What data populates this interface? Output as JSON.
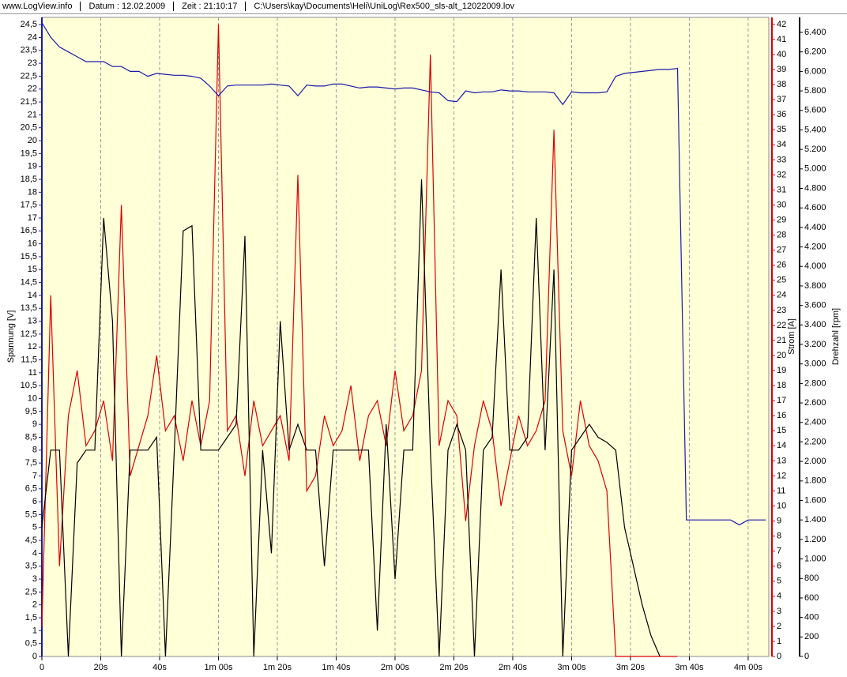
{
  "header": [
    "www.LogView.info",
    "Datum : 12.02.2009",
    "Zeit : 21:10:17",
    "C:\\Users\\kay\\Documents\\Heli\\UniLog\\Rex500_sls-alt_12022009.lov"
  ],
  "chart_data": {
    "type": "line",
    "ylabel": "Spannung [V]",
    "y2label": "Strom [A]",
    "y3label": "Drehzahl [rpm]",
    "x": [
      0,
      3,
      6,
      9,
      12,
      15,
      18,
      21,
      24,
      27,
      30,
      33,
      36,
      39,
      42,
      45,
      48,
      51,
      54,
      57,
      60,
      63,
      66,
      69,
      72,
      75,
      78,
      81,
      84,
      87,
      90,
      93,
      96,
      99,
      102,
      105,
      108,
      111,
      114,
      117,
      120,
      123,
      126,
      129,
      132,
      135,
      138,
      141,
      144,
      147,
      150,
      153,
      156,
      159,
      162,
      165,
      168,
      171,
      174,
      177,
      180,
      183,
      186,
      189,
      192,
      195,
      198,
      201,
      204,
      207,
      210,
      213,
      216,
      219,
      222,
      225,
      228,
      231,
      234,
      237,
      240,
      243,
      246
    ],
    "xlim": [
      0,
      247
    ],
    "xticks": [
      0,
      {
        "value": 20,
        "label": "20s"
      },
      {
        "value": 40,
        "label": "40s"
      },
      {
        "value": 60,
        "label": "1m 00s"
      },
      {
        "value": 80,
        "label": "1m 20s"
      },
      {
        "value": 100,
        "label": "1m 40s"
      },
      {
        "value": 120,
        "label": "2m 00s"
      },
      {
        "value": 140,
        "label": "2m 20s"
      },
      {
        "value": 160,
        "label": "2m 40s"
      },
      {
        "value": 180,
        "label": "3m 00s"
      },
      {
        "value": 200,
        "label": "3m 20s"
      },
      {
        "value": 220,
        "label": "3m 40s"
      },
      {
        "value": 240,
        "label": "4m 00s"
      }
    ],
    "grid": true,
    "ylim": [
      0,
      24.78
    ],
    "yticks": [
      0,
      {
        "value": 0.5,
        "label": "0,5"
      },
      1,
      {
        "value": 1.5,
        "label": "1,5"
      },
      2,
      {
        "value": 2.5,
        "label": "2,5"
      },
      3,
      {
        "value": 3.5,
        "label": "3,5"
      },
      4,
      {
        "value": 4.5,
        "label": "4,5"
      },
      5,
      {
        "value": 5.5,
        "label": "5,5"
      },
      6,
      {
        "value": 6.5,
        "label": "6,5"
      },
      7,
      {
        "value": 7.5,
        "label": "7,5"
      },
      8,
      {
        "value": 8.5,
        "label": "8,5"
      },
      9,
      {
        "value": 9.5,
        "label": "9,5"
      },
      10,
      {
        "value": 10.5,
        "label": "10,5"
      },
      11,
      {
        "value": 11.5,
        "label": "11,5"
      },
      12,
      {
        "value": 12.5,
        "label": "12,5"
      },
      13,
      {
        "value": 13.5,
        "label": "13,5"
      },
      14,
      {
        "value": 14.5,
        "label": "14,5"
      },
      15,
      {
        "value": 15.5,
        "label": "15,5"
      },
      16,
      {
        "value": 16.5,
        "label": "16,5"
      },
      17,
      {
        "value": 17.5,
        "label": "17,5"
      },
      18,
      {
        "value": 18.5,
        "label": "18,5"
      },
      19,
      {
        "value": 19.5,
        "label": "19,5"
      },
      20,
      {
        "value": 20.5,
        "label": "20,5"
      },
      21,
      {
        "value": 21.5,
        "label": "21,5"
      },
      22,
      {
        "value": 22.5,
        "label": "22,5"
      },
      23,
      {
        "value": 23.5,
        "label": "23,5"
      },
      24,
      {
        "value": 24.5,
        "label": "24,5"
      }
    ],
    "y2lim": [
      0,
      42.47
    ],
    "y2ticks": [
      0,
      1,
      2,
      3,
      4,
      5,
      6,
      7,
      8,
      9,
      10,
      11,
      12,
      13,
      14,
      15,
      16,
      17,
      18,
      19,
      20,
      21,
      22,
      23,
      24,
      25,
      26,
      27,
      28,
      29,
      30,
      31,
      32,
      33,
      34,
      35,
      36,
      37,
      38,
      39,
      40,
      41,
      42
    ],
    "y3lim": [
      0,
      6554
    ],
    "y3ticks": [
      0,
      200,
      400,
      600,
      800,
      {
        "value": 1000,
        "label": "1.000"
      },
      {
        "value": 1200,
        "label": "1.200"
      },
      {
        "value": 1400,
        "label": "1.400"
      },
      {
        "value": 1600,
        "label": "1.600"
      },
      {
        "value": 1800,
        "label": "1.800"
      },
      {
        "value": 2000,
        "label": "2.000"
      },
      {
        "value": 2200,
        "label": "2.200"
      },
      {
        "value": 2400,
        "label": "2.400"
      },
      {
        "value": 2600,
        "label": "2.600"
      },
      {
        "value": 2800,
        "label": "2.800"
      },
      {
        "value": 3000,
        "label": "3.000"
      },
      {
        "value": 3200,
        "label": "3.200"
      },
      {
        "value": 3400,
        "label": "3.400"
      },
      {
        "value": 3600,
        "label": "3.600"
      },
      {
        "value": 3800,
        "label": "3.800"
      },
      {
        "value": 4000,
        "label": "4.000"
      },
      {
        "value": 4200,
        "label": "4.200"
      },
      {
        "value": 4400,
        "label": "4.400"
      },
      {
        "value": 4600,
        "label": "4.600"
      },
      {
        "value": 4800,
        "label": "4.800"
      },
      {
        "value": 5000,
        "label": "5.000"
      },
      {
        "value": 5200,
        "label": "5.200"
      },
      {
        "value": 5400,
        "label": "5.400"
      },
      {
        "value": 5600,
        "label": "5.600"
      },
      {
        "value": 5800,
        "label": "5.800"
      },
      {
        "value": 6000,
        "label": "6.000"
      },
      {
        "value": 6200,
        "label": "6.200"
      },
      {
        "value": 6400,
        "label": "6.400"
      }
    ],
    "series": [
      {
        "color": "#dd0000",
        "axis": "y2",
        "values": [
          2,
          24,
          6,
          16,
          19,
          14,
          15,
          17,
          13,
          30,
          12,
          14,
          16,
          20,
          15,
          16,
          13,
          17,
          14,
          17,
          42,
          15,
          16,
          12,
          17,
          14,
          15,
          16,
          13,
          32,
          11,
          12,
          16,
          14,
          15,
          18,
          13,
          16,
          17,
          14,
          19,
          15,
          16,
          19,
          40,
          14,
          17,
          16,
          9,
          14,
          17,
          15,
          10,
          13,
          16,
          14,
          15,
          17,
          35,
          15,
          12,
          17,
          14,
          13,
          11,
          0,
          0,
          0,
          0,
          0,
          0,
          0,
          0,
          null,
          null,
          null,
          null,
          null,
          null,
          null,
          null,
          null,
          null
        ]
      },
      {
        "color": "#000000",
        "axis": "y",
        "values": [
          5,
          8,
          8,
          0,
          7.5,
          8,
          8,
          17,
          13,
          0,
          8,
          8,
          8,
          8.5,
          0,
          8,
          16.5,
          16.7,
          8,
          8,
          8,
          8.5,
          9,
          16.3,
          0,
          8,
          4,
          13,
          8,
          9,
          8,
          8,
          3.5,
          8,
          8,
          8,
          8,
          8,
          1,
          9,
          3,
          8,
          8,
          18.5,
          8,
          0,
          8,
          9,
          8,
          0,
          8,
          8.5,
          15,
          8,
          8,
          8.5,
          17,
          8,
          15,
          0,
          8,
          8.5,
          9,
          8.5,
          8.3,
          8,
          5,
          3.5,
          2,
          0.8,
          0,
          null,
          null,
          null,
          null,
          null,
          null,
          null,
          null,
          null,
          null,
          null,
          null
        ]
      },
      {
        "color": "#1a1aaa",
        "axis": "y3",
        "values": [
          6500,
          6350,
          6250,
          6200,
          6150,
          6100,
          6100,
          6100,
          6050,
          6050,
          6000,
          6000,
          5950,
          5980,
          5970,
          5960,
          5960,
          5950,
          5930,
          5850,
          5750,
          5850,
          5860,
          5860,
          5860,
          5860,
          5870,
          5860,
          5850,
          5750,
          5860,
          5850,
          5850,
          5870,
          5870,
          5850,
          5830,
          5840,
          5840,
          5830,
          5820,
          5830,
          5830,
          5810,
          5790,
          5780,
          5700,
          5690,
          5800,
          5780,
          5790,
          5790,
          5810,
          5800,
          5800,
          5790,
          5790,
          5790,
          5780,
          5660,
          5790,
          5780,
          5780,
          5780,
          5790,
          5950,
          5980,
          5990,
          6000,
          6010,
          6020,
          6020,
          6030,
          1400,
          1400,
          1400,
          1400,
          1400,
          1400,
          1350,
          1400,
          1400,
          1400
        ]
      }
    ]
  }
}
